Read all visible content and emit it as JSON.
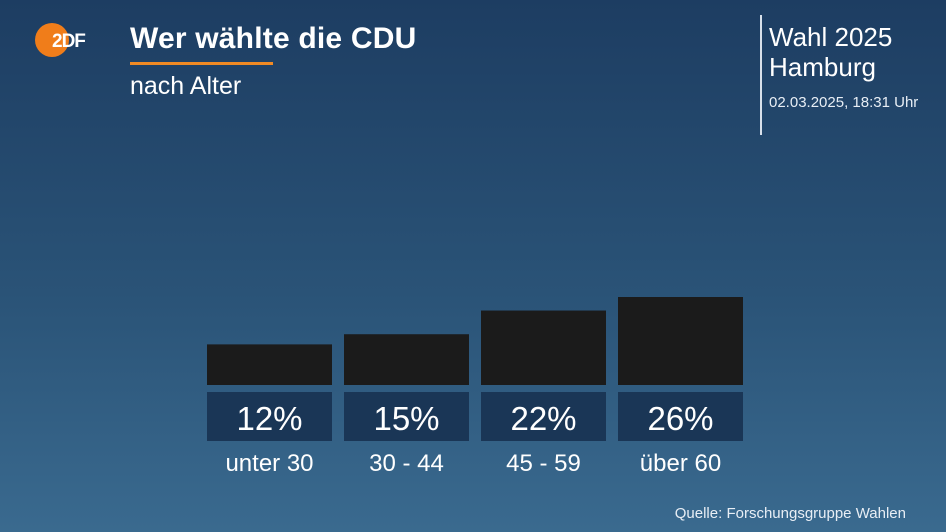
{
  "header": {
    "logo_text": "2DF",
    "title": "Wer wählte die CDU",
    "subtitle": "nach Alter",
    "context_line1": "Wahl 2025",
    "context_line2": "Hamburg",
    "timestamp": "02.03.2025, 18:31 Uhr"
  },
  "footer": {
    "source": "Quelle: Forschungsgruppe Wahlen"
  },
  "colors": {
    "bar": "#1b1b1b",
    "label_box": "#1a3656",
    "accent": "#f08a24",
    "logo": "#f07d1a"
  },
  "chart_data": {
    "type": "bar",
    "title": "Wer wählte die CDU",
    "subtitle": "nach Alter",
    "categories": [
      "unter 30",
      "30 - 44",
      "45 - 59",
      "über 60"
    ],
    "values": [
      12,
      15,
      22,
      26
    ],
    "value_labels": [
      "12%",
      "15%",
      "22%",
      "26%"
    ],
    "ylim": [
      0,
      30
    ],
    "grid": false,
    "legend": "none"
  }
}
